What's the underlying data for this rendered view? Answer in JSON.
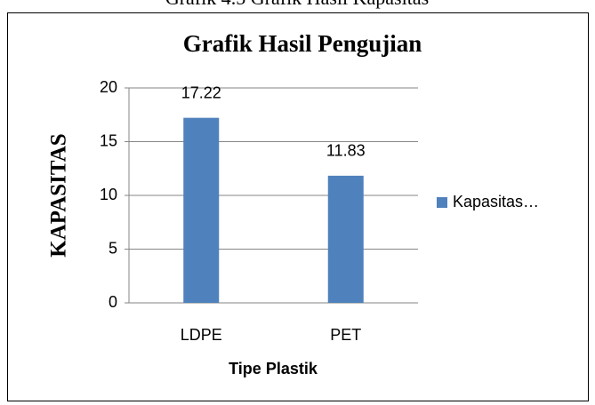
{
  "caption": "Grafik 4.5 Grafik Hasil Kapasitas",
  "chart_data": {
    "type": "bar",
    "title": "Grafik Hasil Pengujian",
    "x_label": "Tipe Plastik",
    "y_label": "KAPASITAS",
    "categories": [
      "LDPE",
      "PET"
    ],
    "series": [
      {
        "name": "Kapasitas…",
        "color": "#4f81bd",
        "values": [
          17.22,
          11.83
        ]
      }
    ],
    "ylim": [
      0,
      20
    ],
    "yticks": [
      0,
      5,
      10,
      15,
      20
    ],
    "grid": true,
    "legend": "right"
  }
}
